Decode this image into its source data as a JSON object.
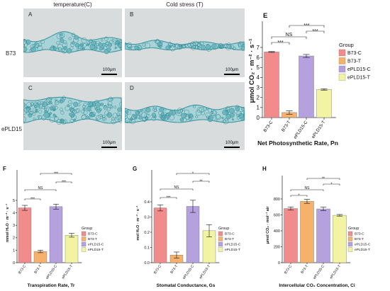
{
  "figure": {
    "column_headers": [
      "temperature(C)",
      "Cold stress (T)"
    ],
    "row_labels": [
      "B73",
      "ePLD15"
    ],
    "micrographs": [
      {
        "label": "A",
        "scale_bar": "100μm"
      },
      {
        "label": "B",
        "scale_bar": "100μm"
      },
      {
        "label": "C",
        "scale_bar": "100μm"
      },
      {
        "label": "D",
        "scale_bar": "100μm"
      }
    ]
  },
  "group_colors": {
    "B73-C": "#F28B8B",
    "B73-T": "#F6B26B",
    "ePLD15-C": "#B4A1DE",
    "ePLD15-T": "#F3F4A3"
  },
  "chart_data": [
    {
      "panel": "E",
      "type": "bar",
      "categories": [
        "B73-C",
        "B73-T",
        "ePLD15-C",
        "ePLD15-T"
      ],
      "values": [
        6.55,
        0.5,
        6.15,
        2.8
      ],
      "errors": [
        0.04,
        0.17,
        0.15,
        0.08
      ],
      "xlabel": "Net Photosynthetic Rate, Pn",
      "ylabel": "μmol CO₂ · m⁻² · s⁻¹",
      "ylim": [
        0,
        7
      ],
      "yticks": [
        "0",
        "1",
        "2",
        "3",
        "4",
        "5",
        "6",
        "7"
      ],
      "grid": false,
      "legend": {
        "title": "Group",
        "entries": [
          "B73-C",
          "B73-T",
          "ePLD15-C",
          "ePLD15-T"
        ],
        "position": "right"
      },
      "significance": [
        {
          "groups": [
            0,
            1
          ],
          "label": "***"
        },
        {
          "groups": [
            0,
            2
          ],
          "label": "NS"
        },
        {
          "groups": [
            2,
            3
          ],
          "label": "***"
        },
        {
          "groups": [
            1,
            3
          ],
          "label": "***"
        }
      ]
    },
    {
      "panel": "F",
      "type": "bar",
      "categories": [
        "B73-C",
        "B73-T",
        "ePLD15-C",
        "ePLD15-T"
      ],
      "values": [
        4.4,
        0.9,
        4.5,
        2.2
      ],
      "errors": [
        0.2,
        0.1,
        0.2,
        0.15
      ],
      "xlabel": "Transpiration Rate, Tr",
      "ylabel": "mmol H₂O · m⁻² · s⁻¹",
      "ylim": [
        0,
        5
      ],
      "yticks": [
        "0",
        "1",
        "2",
        "3",
        "4",
        "5"
      ],
      "grid": false,
      "legend": {
        "title": "Group",
        "entries": [
          "B73-C",
          "B73-T",
          "ePLD15-C",
          "ePLD15-T"
        ],
        "position": "right"
      },
      "significance": [
        {
          "groups": [
            0,
            1
          ],
          "label": "***"
        },
        {
          "groups": [
            0,
            2
          ],
          "label": "NS"
        },
        {
          "groups": [
            2,
            3
          ],
          "label": "***"
        },
        {
          "groups": [
            1,
            3
          ],
          "label": "***"
        }
      ]
    },
    {
      "panel": "G",
      "type": "bar",
      "categories": [
        "B73-C",
        "B73-T",
        "ePLD15-C",
        "ePLD15-T"
      ],
      "values": [
        0.36,
        0.05,
        0.37,
        0.21
      ],
      "errors": [
        0.02,
        0.02,
        0.04,
        0.04
      ],
      "xlabel": "Stomatal Conductance, Gs",
      "ylabel": "mol H₂O · m⁻² · s⁻¹",
      "ylim": [
        0,
        0.4
      ],
      "yticks": [
        "0.0",
        "0.1",
        "0.2",
        "0.3",
        "0.4"
      ],
      "grid": false,
      "legend": {
        "title": "Group",
        "entries": [
          "B73-C",
          "B73-T",
          "ePLD15-C",
          "ePLD15-T"
        ],
        "position": "right"
      },
      "significance": [
        {
          "groups": [
            0,
            1
          ],
          "label": "***"
        },
        {
          "groups": [
            0,
            2
          ],
          "label": "NS"
        },
        {
          "groups": [
            2,
            3
          ],
          "label": "**"
        },
        {
          "groups": [
            1,
            3
          ],
          "label": "*"
        }
      ]
    },
    {
      "panel": "H",
      "type": "bar",
      "categories": [
        "B73-C",
        "B73-T",
        "ePLD15-C",
        "ePLD15-T"
      ],
      "values": [
        680,
        770,
        675,
        595
      ],
      "errors": [
        20,
        25,
        22,
        10
      ],
      "xlabel": "Intercellular CO₂ Concentration, Ci",
      "ylabel": "μmol CO₂ · mol⁻¹ air",
      "ylim": [
        0,
        800
      ],
      "yticks": [
        "0",
        "200",
        "400",
        "600",
        "800"
      ],
      "grid": false,
      "legend": {
        "title": "Group",
        "entries": [
          "B73-C",
          "B73-T",
          "ePLD15-C",
          "ePLD15-T"
        ],
        "position": "right"
      },
      "significance": [
        {
          "groups": [
            0,
            1
          ],
          "label": "*"
        },
        {
          "groups": [
            0,
            2
          ],
          "label": "NS"
        },
        {
          "groups": [
            2,
            3
          ],
          "label": "*"
        },
        {
          "groups": [
            1,
            3
          ],
          "label": "**"
        }
      ]
    }
  ]
}
